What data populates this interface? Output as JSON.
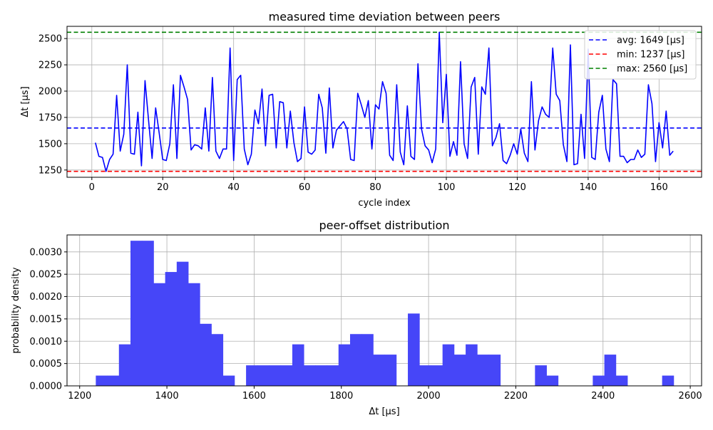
{
  "chart_data": [
    {
      "type": "line",
      "title": "measured time deviation between peers",
      "xlabel": "cycle index",
      "ylabel": "Δt [µs]",
      "xlim": [
        -7,
        172
      ],
      "ylim": [
        1181,
        2616
      ],
      "xticks": [
        0,
        20,
        40,
        60,
        80,
        100,
        120,
        140,
        160
      ],
      "yticks": [
        1250,
        1500,
        1750,
        2000,
        2250,
        2500
      ],
      "grid": true,
      "legend_position": "top-right",
      "series": [
        {
          "color": "#0000ff",
          "x": [
            1,
            2,
            3,
            4,
            5,
            6,
            7,
            8,
            9,
            10,
            11,
            12,
            13,
            14,
            15,
            16,
            17,
            18,
            19,
            20,
            21,
            22,
            23,
            24,
            25,
            26,
            27,
            28,
            29,
            30,
            31,
            32,
            33,
            34,
            35,
            36,
            37,
            38,
            39,
            40,
            41,
            42,
            43,
            44,
            45,
            46,
            47,
            48,
            49,
            50,
            51,
            52,
            53,
            54,
            55,
            56,
            57,
            58,
            59,
            60,
            61,
            62,
            63,
            64,
            65,
            66,
            67,
            68,
            69,
            70,
            71,
            72,
            73,
            74,
            75,
            76,
            77,
            78,
            79,
            80,
            81,
            82,
            83,
            84,
            85,
            86,
            87,
            88,
            89,
            90,
            91,
            92,
            93,
            94,
            95,
            96,
            97,
            98,
            99,
            100,
            101,
            102,
            103,
            104,
            105,
            106,
            107,
            108,
            109,
            110,
            111,
            112,
            113,
            114,
            115,
            116,
            117,
            118,
            119,
            120,
            121,
            122,
            123,
            124,
            125,
            126,
            127,
            128,
            129,
            130,
            131,
            132,
            133,
            134,
            135,
            136,
            137,
            138,
            139,
            140,
            141,
            142,
            143,
            144,
            145,
            146,
            147,
            148,
            149,
            150,
            151,
            152,
            153,
            154,
            155,
            156,
            157,
            158,
            159,
            160,
            161,
            162,
            163,
            164
          ],
          "values": [
            1510,
            1380,
            1370,
            1237,
            1350,
            1400,
            1960,
            1430,
            1590,
            2250,
            1410,
            1400,
            1800,
            1290,
            2100,
            1720,
            1360,
            1840,
            1600,
            1350,
            1340,
            1500,
            2060,
            1360,
            2150,
            2040,
            1920,
            1440,
            1490,
            1480,
            1450,
            1840,
            1430,
            2130,
            1430,
            1360,
            1450,
            1450,
            2410,
            1340,
            2110,
            2150,
            1450,
            1300,
            1400,
            1820,
            1690,
            2020,
            1480,
            1960,
            1970,
            1460,
            1900,
            1890,
            1460,
            1810,
            1510,
            1330,
            1360,
            1850,
            1420,
            1400,
            1440,
            1970,
            1840,
            1410,
            2030,
            1460,
            1630,
            1670,
            1710,
            1640,
            1350,
            1340,
            1980,
            1870,
            1750,
            1910,
            1450,
            1870,
            1830,
            2090,
            1980,
            1390,
            1340,
            2060,
            1420,
            1300,
            1860,
            1380,
            1350,
            2260,
            1640,
            1480,
            1440,
            1320,
            1450,
            2560,
            1700,
            2160,
            1380,
            1520,
            1390,
            2280,
            1500,
            1360,
            2040,
            2130,
            1400,
            2040,
            1970,
            2410,
            1480,
            1560,
            1690,
            1340,
            1310,
            1390,
            1500,
            1400,
            1640,
            1410,
            1330,
            2090,
            1440,
            1720,
            1850,
            1780,
            1750,
            2410,
            1970,
            1910,
            1490,
            1330,
            2440,
            1300,
            1310,
            1780,
            1360,
            2400,
            1370,
            1350,
            1800,
            1960,
            1450,
            1330,
            2110,
            2070,
            1380,
            1380,
            1320,
            1350,
            1350,
            1440,
            1370,
            1400,
            2060,
            1880,
            1330,
            1700,
            1460,
            1810,
            1390,
            1430
          ]
        }
      ],
      "reference_lines": [
        {
          "label": "avg: 1649 [µs]",
          "value": 1649,
          "color": "#0000ff"
        },
        {
          "label": "min: 1237 [µs]",
          "value": 1237,
          "color": "#ff0000"
        },
        {
          "label": "max: 2560 [µs]",
          "value": 2560,
          "color": "#008000"
        }
      ]
    },
    {
      "type": "bar",
      "title": "peer-offset distribution",
      "xlabel": "Δt [µs]",
      "ylabel": "probability density",
      "xlim": [
        1171,
        2626
      ],
      "ylim": [
        0,
        0.00338
      ],
      "xticks": [
        1200,
        1400,
        1600,
        1800,
        2000,
        2200,
        2400,
        2600
      ],
      "yticks": [
        "0.0000",
        "0.0005",
        "0.0010",
        "0.0015",
        "0.0020",
        "0.0025",
        "0.0030"
      ],
      "ytick_values": [
        0,
        0.0005,
        0.001,
        0.0015,
        0.002,
        0.0025,
        0.003
      ],
      "grid": true,
      "color": "#4646f8",
      "bin_edges": [
        1237,
        1263.5,
        1290,
        1316.5,
        1343,
        1369.5,
        1396,
        1422.5,
        1449,
        1475.5,
        1502,
        1528.5,
        1555,
        1581.5,
        1608,
        1634.5,
        1661,
        1687.5,
        1714,
        1740.5,
        1767,
        1793.5,
        1820,
        1846.5,
        1873,
        1899.5,
        1926,
        1952.5,
        1979,
        2005.5,
        2032,
        2058.5,
        2085,
        2111.5,
        2138,
        2164.5,
        2191,
        2217.5,
        2244,
        2270.5,
        2297,
        2323.5,
        2350,
        2376.5,
        2403,
        2429.5,
        2456,
        2482.5,
        2509,
        2535.5,
        2562
      ],
      "values": [
        0.00023,
        0.00023,
        0.00093,
        0.00325,
        0.00325,
        0.0023,
        0.00255,
        0.00278,
        0.0023,
        0.00139,
        0.00116,
        0.00023,
        0,
        0.00046,
        0.00046,
        0.00046,
        0.00046,
        0.00093,
        0.00046,
        0.00046,
        0.00046,
        0.00093,
        0.00116,
        0.00116,
        0.0007,
        0.0007,
        0,
        0.00162,
        0.00046,
        0.00046,
        0.00093,
        0.0007,
        0.00093,
        0.0007,
        0.0007,
        0,
        0,
        0,
        0.00046,
        0.00023,
        0,
        0,
        0,
        0.00023,
        0.0007,
        0.00023,
        0,
        0,
        0,
        0.00023
      ]
    }
  ]
}
